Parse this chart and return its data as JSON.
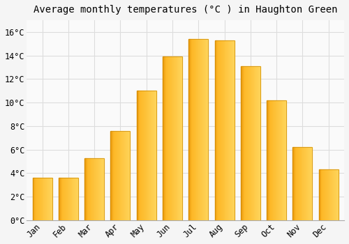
{
  "title": "Average monthly temperatures (°C ) in Haughton Green",
  "months": [
    "Jan",
    "Feb",
    "Mar",
    "Apr",
    "May",
    "Jun",
    "Jul",
    "Aug",
    "Sep",
    "Oct",
    "Nov",
    "Dec"
  ],
  "temperatures": [
    3.6,
    3.6,
    5.3,
    7.6,
    11.0,
    13.9,
    15.4,
    15.3,
    13.1,
    10.2,
    6.2,
    4.3
  ],
  "bar_color_main": "#FDB827",
  "bar_color_left": "#E8960A",
  "bar_color_right": "#FFD45A",
  "background_color": "#F5F5F5",
  "plot_bg_color": "#FAFAFA",
  "grid_color": "#DDDDDD",
  "ylim": [
    0,
    17
  ],
  "yticks": [
    0,
    2,
    4,
    6,
    8,
    10,
    12,
    14,
    16
  ],
  "ytick_labels": [
    "0°C",
    "2°C",
    "4°C",
    "6°C",
    "8°C",
    "10°C",
    "12°C",
    "14°C",
    "16°C"
  ],
  "title_fontsize": 10,
  "tick_fontsize": 8.5,
  "font_family": "monospace"
}
